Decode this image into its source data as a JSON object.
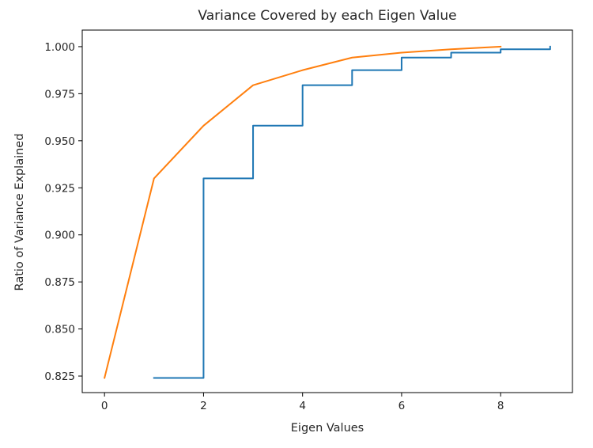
{
  "chart_data": {
    "type": "line",
    "title": "Variance Covered by each Eigen Value",
    "xlabel": "Eigen Values",
    "ylabel": "Ratio of Variance Explained",
    "xlim": [
      -0.45,
      9.45
    ],
    "ylim": [
      0.8162,
      1.0088
    ],
    "x_ticks": [
      0,
      2,
      4,
      6,
      8
    ],
    "y_ticks": [
      0.825,
      0.85,
      0.875,
      0.9,
      0.925,
      0.95,
      0.975,
      1.0
    ],
    "x_tick_labels": [
      "0",
      "2",
      "4",
      "6",
      "8"
    ],
    "y_tick_labels": [
      "0.825",
      "0.850",
      "0.875",
      "0.900",
      "0.925",
      "0.950",
      "0.975",
      "1.000"
    ],
    "grid": false,
    "series": [
      {
        "style": "step-post",
        "color": "#1f77b4",
        "x": [
          1,
          2,
          3,
          4,
          5,
          6,
          7,
          8,
          9
        ],
        "y": [
          0.824,
          0.93,
          0.958,
          0.9795,
          0.9875,
          0.9942,
          0.9968,
          0.9986,
          1.0
        ]
      },
      {
        "style": "line",
        "color": "#ff7f0e",
        "x": [
          0,
          1,
          2,
          3,
          4,
          5,
          6,
          7,
          8
        ],
        "y": [
          0.824,
          0.93,
          0.958,
          0.9795,
          0.9875,
          0.9942,
          0.9968,
          0.9986,
          1.0
        ]
      }
    ]
  }
}
